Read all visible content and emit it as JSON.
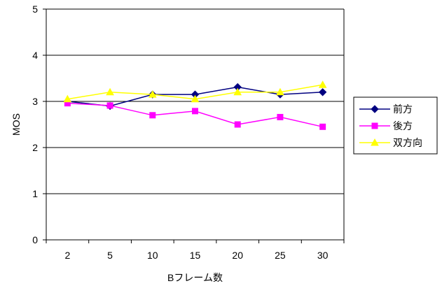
{
  "chart_data": {
    "type": "line",
    "title": "",
    "xlabel": "Bフレーム数",
    "ylabel": "MOS",
    "x": [
      "2",
      "5",
      "10",
      "15",
      "20",
      "25",
      "30"
    ],
    "ylim": [
      0,
      5
    ],
    "yticks": [
      "0",
      "1",
      "2",
      "3",
      "4",
      "5"
    ],
    "grid": true,
    "legend": "right",
    "series": [
      {
        "name": "前方",
        "values": [
          3.0,
          2.9,
          3.15,
          3.15,
          3.31,
          3.15,
          3.2
        ],
        "color": "#000080",
        "marker": "diamond"
      },
      {
        "name": "後方",
        "values": [
          2.96,
          2.91,
          2.7,
          2.79,
          2.5,
          2.66,
          2.45
        ],
        "color": "#ff00ff",
        "marker": "square"
      },
      {
        "name": "双方向",
        "values": [
          3.05,
          3.2,
          3.15,
          3.05,
          3.2,
          3.2,
          3.36
        ],
        "color": "#ffff00",
        "marker": "triangle"
      }
    ]
  }
}
